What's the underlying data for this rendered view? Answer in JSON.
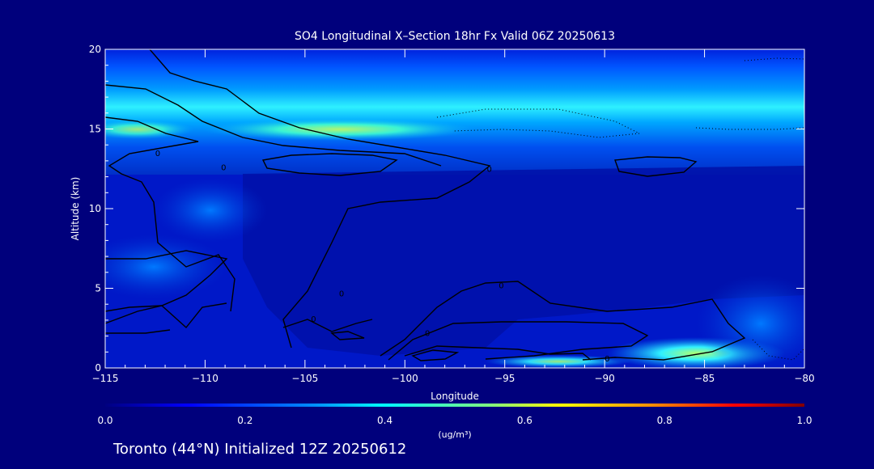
{
  "chart_data": {
    "type": "heatmap",
    "title": "SO4 Longitudinal X–Section 18hr  Fx Valid 06Z 20250613",
    "xlabel": "Longitude",
    "ylabel": "Altitude (km)",
    "xlim": [
      -115,
      -80
    ],
    "ylim": [
      0,
      20
    ],
    "xticks": [
      -115,
      -110,
      -105,
      -100,
      -95,
      -90,
      -85,
      -80
    ],
    "xtick_labels": [
      "−115",
      "−110",
      "−105",
      "−100",
      "−95",
      "−90",
      "−85",
      "−80"
    ],
    "yticks": [
      0,
      5,
      10,
      15,
      20
    ],
    "ytick_labels": [
      "0",
      "5",
      "10",
      "15",
      "20"
    ],
    "colorbar": {
      "min": 0.0,
      "max": 1.0,
      "ticks": [
        "0.0",
        "0.2",
        "0.4",
        "0.6",
        "0.8",
        "1.0"
      ],
      "unit_label": "(ug/m³)",
      "colormap": "rainbow"
    },
    "contour_labels": [
      "0",
      "0",
      "0",
      "0",
      "0",
      "0",
      "0",
      "0"
    ],
    "concentration_features": [
      {
        "lon_range": [
          -115,
          -80
        ],
        "alt_range": [
          16,
          19
        ],
        "value": 0.2
      },
      {
        "lon_range": [
          -115,
          -80
        ],
        "alt_range": [
          13.5,
          16
        ],
        "value": 0.3
      },
      {
        "lon_range": [
          -110,
          -100
        ],
        "alt_range": [
          14.2,
          15.2
        ],
        "value": 0.45
      },
      {
        "lon_range": [
          -115,
          -110
        ],
        "alt_range": [
          14,
          16
        ],
        "value": 0.4
      },
      {
        "lon_range": [
          -95,
          -83
        ],
        "alt_range": [
          0,
          1.5
        ],
        "value": 0.4
      },
      {
        "lon_range": [
          -88,
          -84
        ],
        "alt_range": [
          0.5,
          1.3
        ],
        "value": 0.55
      }
    ],
    "footer": "Toronto (44°N) Initialized 12Z 20250612",
    "colors": {
      "background": "#00007c",
      "text": "#ffffff",
      "contour": "#000000"
    }
  }
}
